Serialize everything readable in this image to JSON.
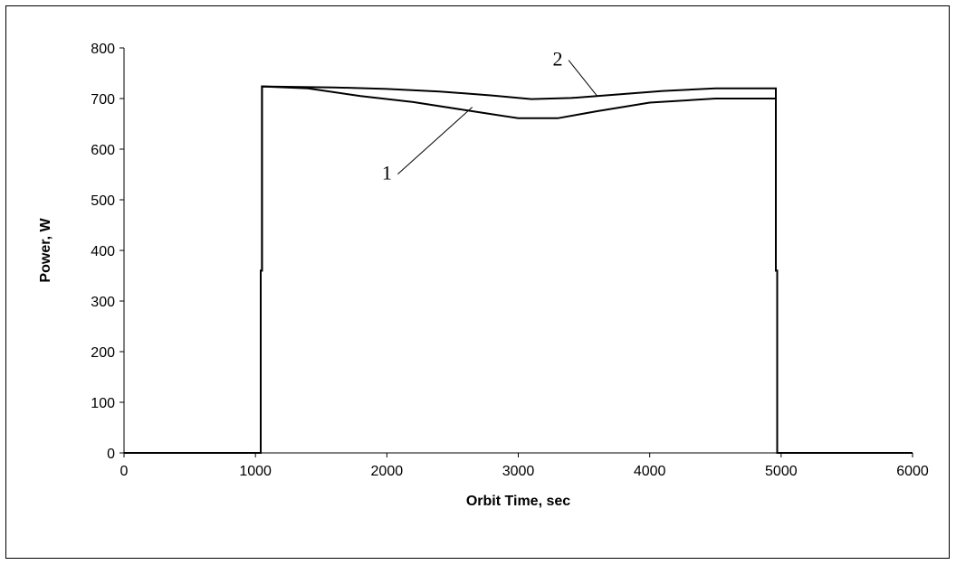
{
  "chart_data": {
    "type": "line",
    "xlabel": "Orbit Time, sec",
    "ylabel": "Power, W",
    "xlim": [
      0,
      6000
    ],
    "ylim": [
      0,
      800
    ],
    "xticks": [
      0,
      1000,
      2000,
      3000,
      4000,
      5000,
      6000
    ],
    "yticks": [
      0,
      100,
      200,
      300,
      400,
      500,
      600,
      700,
      800
    ],
    "grid": false,
    "legend": "none",
    "line_color": "#000000",
    "series": [
      {
        "label": "1",
        "x": [
          0,
          1040,
          1040,
          1050,
          1050,
          1400,
          1800,
          2200,
          2600,
          3000,
          3300,
          3600,
          4000,
          4500,
          4960,
          4960,
          4970,
          4970,
          6000
        ],
        "y": [
          0,
          0,
          360,
          360,
          724,
          720,
          705,
          693,
          677,
          661,
          661,
          675,
          692,
          700,
          700,
          360,
          360,
          0,
          0
        ]
      },
      {
        "label": "2",
        "x": [
          0,
          1040,
          1040,
          1050,
          1050,
          1600,
          2000,
          2400,
          2800,
          3100,
          3400,
          3700,
          4100,
          4500,
          4960,
          4960,
          4970,
          4970,
          6000
        ],
        "y": [
          0,
          0,
          360,
          360,
          724,
          722,
          719,
          714,
          706,
          699,
          701,
          707,
          715,
          720,
          720,
          360,
          360,
          0,
          0
        ]
      }
    ],
    "annotations": [
      {
        "text": "1",
        "series": "1",
        "point": [
          2650,
          683
        ],
        "label_at": [
          2000,
          540
        ]
      },
      {
        "text": "2",
        "series": "2",
        "point": [
          3600,
          705
        ],
        "label_at": [
          3300,
          765
        ]
      }
    ]
  }
}
